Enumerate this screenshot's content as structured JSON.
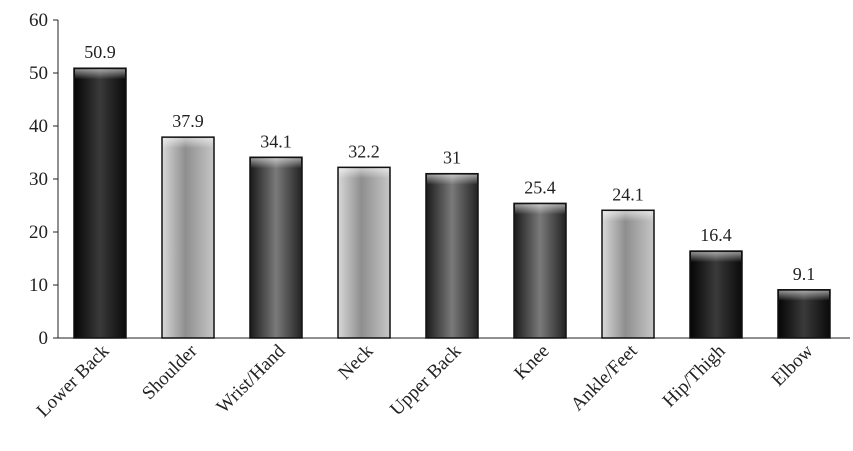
{
  "chart_data": {
    "type": "bar",
    "title": "",
    "xlabel": "",
    "ylabel": "",
    "ylim": [
      0,
      60
    ],
    "yticks": [
      0,
      10,
      20,
      30,
      40,
      50,
      60
    ],
    "grid": false,
    "legend": "none",
    "categories": [
      "Lower Back",
      "Shoulder",
      "Wrist/Hand",
      "Neck",
      "Upper Back",
      "Knee",
      "Ankle/Feet",
      "Hip/Thigh",
      "Elbow"
    ],
    "values": [
      50.9,
      37.9,
      34.1,
      32.2,
      31,
      25.4,
      24.1,
      16.4,
      9.1
    ],
    "value_labels": [
      "50.9",
      "37.9",
      "34.1",
      "32.2",
      "31",
      "25.4",
      "24.1",
      "16.4",
      "9.1"
    ],
    "bar_fill": "x-ray grayscale image texture",
    "colors": {
      "bar_dark": "#0e0e0e",
      "bar_light": "#b8b8b8",
      "axis": "#222222"
    }
  }
}
